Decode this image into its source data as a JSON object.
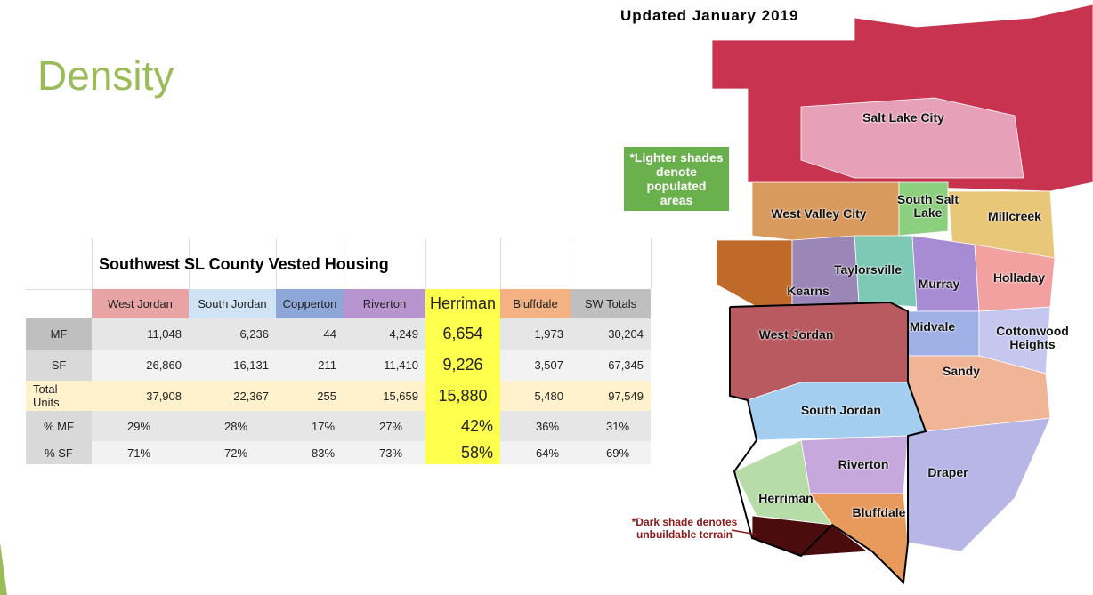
{
  "header": {
    "title": "Density"
  },
  "table": {
    "title": "Southwest SL County Vested Housing",
    "columns": [
      "West Jordan",
      "South Jordan",
      "Copperton",
      "Riverton",
      "Herriman",
      "Bluffdale",
      "SW Totals"
    ],
    "rows": [
      {
        "label": "MF",
        "cells": [
          "11,048",
          "6,236",
          "44",
          "4,249",
          "6,654",
          "1,973",
          "30,204"
        ]
      },
      {
        "label": "SF",
        "cells": [
          "26,860",
          "16,131",
          "211",
          "11,410",
          "9,226",
          "3,507",
          "67,345"
        ]
      },
      {
        "label": "Total Units",
        "cells": [
          "37,908",
          "22,367",
          "255",
          "15,659",
          "15,880",
          "5,480",
          "97,549"
        ]
      },
      {
        "label": "% MF",
        "cells": [
          "29%",
          "28%",
          "17%",
          "27%",
          "42%",
          "36%",
          "31%"
        ]
      },
      {
        "label": "% SF",
        "cells": [
          "71%",
          "72%",
          "83%",
          "73%",
          "58%",
          "64%",
          "69%"
        ]
      }
    ]
  },
  "map": {
    "updated": "Updated January 2019",
    "note_light": "*Lighter shades denote populated areas",
    "note_dark": "*Dark shade denotes unbuildable terrain",
    "labels": [
      "Salt Lake City",
      "West Valley City",
      "South Salt Lake",
      "Millcreek",
      "Taylorsville",
      "Kearns",
      "Murray",
      "Holladay",
      "West Jordan",
      "Midvale",
      "Cottonwood Heights",
      "Sandy",
      "South Jordan",
      "Riverton",
      "Draper",
      "Herriman",
      "Bluffdale"
    ]
  }
}
